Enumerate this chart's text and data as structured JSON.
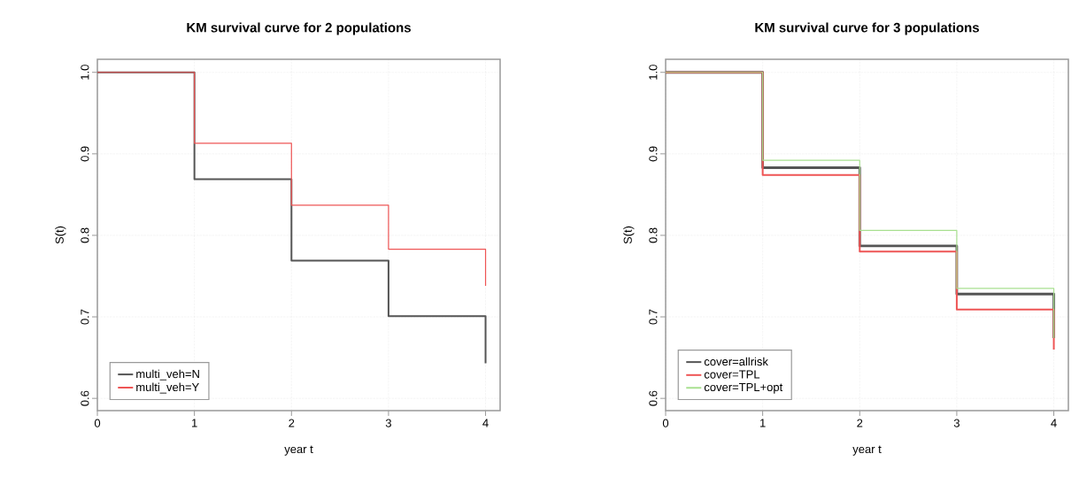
{
  "chart_data": [
    {
      "type": "step",
      "title": "KM survival curve for 2 populations",
      "xlabel": "year t",
      "ylabel": "S(t)",
      "x": [
        0,
        1,
        2,
        3,
        4
      ],
      "series": [
        {
          "name": "multi_veh=N",
          "color": "#555555",
          "values": [
            1.0,
            0.869,
            0.769,
            0.701,
            0.643
          ]
        },
        {
          "name": "multi_veh=Y",
          "color": "#ee5555",
          "values": [
            1.0,
            0.913,
            0.837,
            0.783,
            0.738
          ]
        }
      ],
      "xlim": [
        0,
        4.15
      ],
      "ylim": [
        0.585,
        1.016
      ],
      "xticks": [
        0,
        1,
        2,
        3,
        4
      ],
      "yticks": [
        0.6,
        0.7,
        0.8,
        0.9,
        {
          "value": 1,
          "label": "1.0"
        }
      ],
      "grid": true,
      "legend": "bottom left",
      "line_style": "solid"
    },
    {
      "type": "step",
      "title": "KM survival curve for 3 populations",
      "xlabel": "year t",
      "ylabel": "S(t)",
      "x": [
        0,
        1,
        2,
        3,
        4
      ],
      "series": [
        {
          "name": "cover=allrisk",
          "color": "#555555",
          "values": [
            1.0,
            0.883,
            0.787,
            0.728,
            0.674
          ]
        },
        {
          "name": "cover=TPL",
          "color": "#ee5555",
          "values": [
            1.0,
            0.874,
            0.78,
            0.709,
            0.66
          ]
        },
        {
          "name": "cover=TPL+opt",
          "color": "#a8e090",
          "values": [
            1.0,
            0.892,
            0.806,
            0.735,
            0.674
          ]
        }
      ],
      "xlim": [
        0,
        4.15
      ],
      "ylim": [
        0.585,
        1.016
      ],
      "xticks": [
        0,
        1,
        2,
        3,
        4
      ],
      "yticks": [
        0.6,
        0.7,
        0.8,
        0.9,
        {
          "value": 1,
          "label": "1.0"
        }
      ],
      "grid": true,
      "legend": "bottom left",
      "line_style": "solid"
    }
  ]
}
